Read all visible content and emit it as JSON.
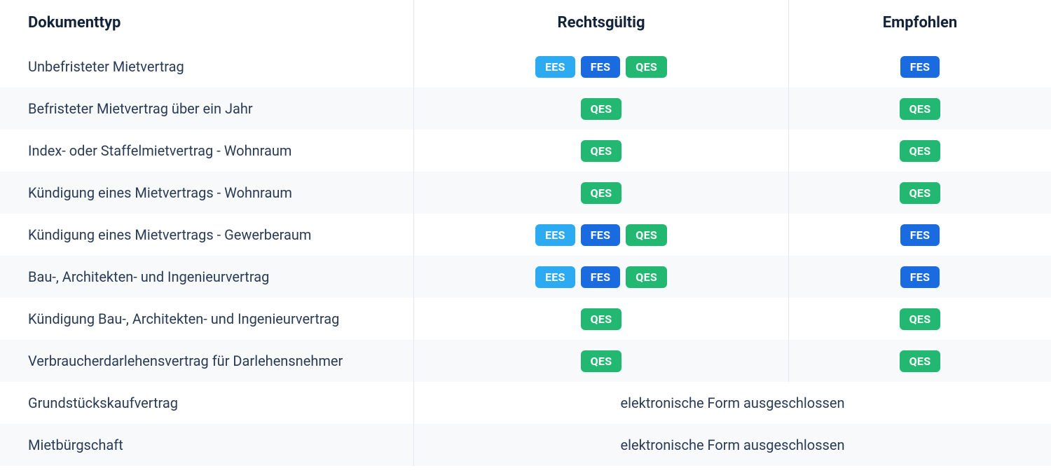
{
  "colors": {
    "EES": "#2cabf2",
    "FES": "#1a6be0",
    "QES": "#22b871",
    "text": "#2a3b56",
    "header_text": "#14233c",
    "border": "#e4e8ee",
    "alt_row": "#f7f9fb",
    "bg": "#ffffff"
  },
  "headers": {
    "doc": "Dokumenttyp",
    "legal": "Rechtsgültig",
    "rec": "Empfohlen"
  },
  "rows": [
    {
      "doc": "Unbefristeter Mietvertrag",
      "legal": [
        "EES",
        "FES",
        "QES"
      ],
      "rec": [
        "FES"
      ]
    },
    {
      "doc": "Befristeter Mietvertrag über ein Jahr",
      "legal": [
        "QES"
      ],
      "rec": [
        "QES"
      ]
    },
    {
      "doc": "Index- oder Staffelmietvertrag - Wohnraum",
      "legal": [
        "QES"
      ],
      "rec": [
        "QES"
      ]
    },
    {
      "doc": "Kündigung eines Mietvertrags - Wohnraum",
      "legal": [
        "QES"
      ],
      "rec": [
        "QES"
      ]
    },
    {
      "doc": "Kündigung eines Mietvertrags - Gewerberaum",
      "legal": [
        "EES",
        "FES",
        "QES"
      ],
      "rec": [
        "FES"
      ]
    },
    {
      "doc": "Bau-, Architekten- und Ingenieurvertrag",
      "legal": [
        "EES",
        "FES",
        "QES"
      ],
      "rec": [
        "FES"
      ]
    },
    {
      "doc": "Kündigung Bau-, Architekten- und Ingenieurvertrag",
      "legal": [
        "QES"
      ],
      "rec": [
        "QES"
      ]
    },
    {
      "doc": "Verbraucherdarlehensvertrag für Darlehensnehmer",
      "legal": [
        "QES"
      ],
      "rec": [
        "QES"
      ]
    },
    {
      "doc": "Grundstückskaufvertrag",
      "note": "elektronische Form ausgeschlossen"
    },
    {
      "doc": "Mietbürgschaft",
      "note": "elektronische Form ausgeschlossen"
    }
  ]
}
